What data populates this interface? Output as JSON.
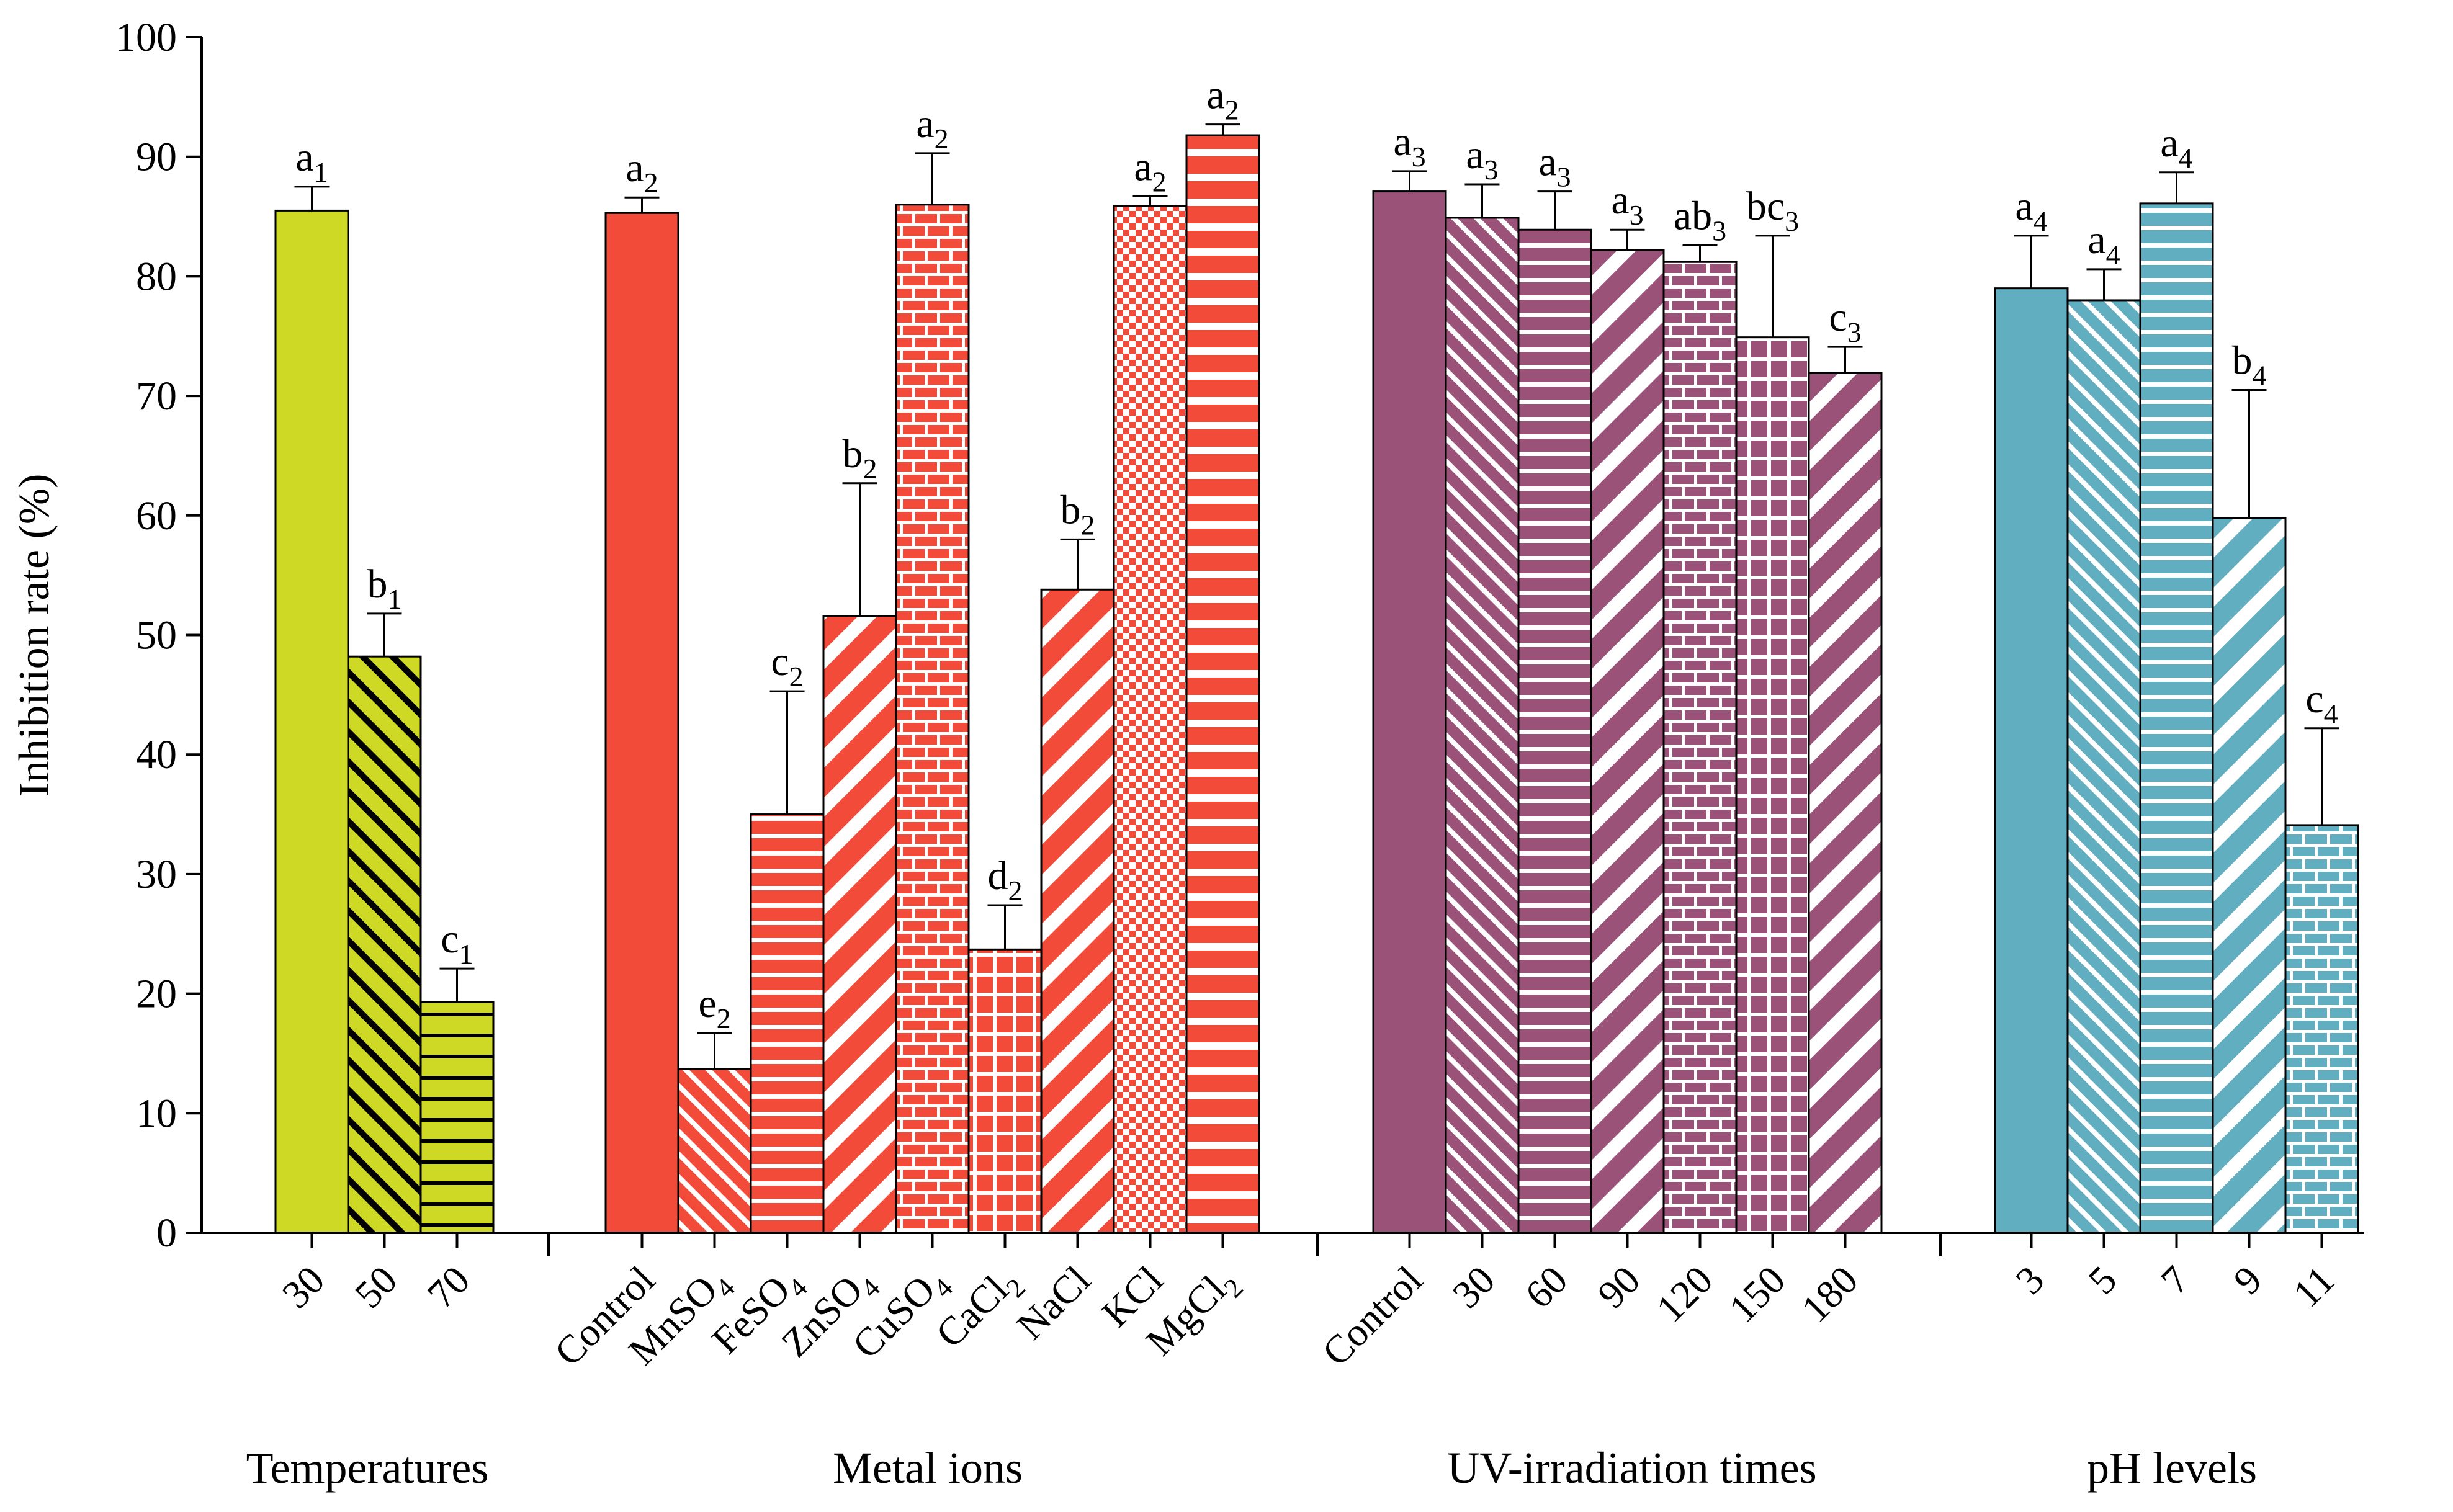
{
  "chart_data": {
    "type": "bar",
    "ylabel": "Inhibition rate (%)",
    "ylim": [
      0,
      100
    ],
    "yticks": [
      0,
      10,
      20,
      30,
      40,
      50,
      60,
      70,
      80,
      90,
      100
    ],
    "grid": false,
    "legend": "none",
    "groups": [
      {
        "name": "Temperatures",
        "color": "#cdd924",
        "bars": [
          {
            "category": "30",
            "value": 85.5,
            "error": 2.0,
            "letter": "a",
            "sub": "1",
            "pattern": "solid"
          },
          {
            "category": "50",
            "value": 48.2,
            "error": 3.6,
            "letter": "b",
            "sub": "1",
            "pattern": "diag-dark"
          },
          {
            "category": "70",
            "value": 19.3,
            "error": 2.8,
            "letter": "c",
            "sub": "1",
            "pattern": "hlines-dark"
          }
        ]
      },
      {
        "name": "Metal ions",
        "color": "#f34b3a",
        "bars": [
          {
            "category": "Control",
            "value": 85.3,
            "error": 1.3,
            "letter": "a",
            "sub": "2",
            "pattern": "solid"
          },
          {
            "category": "MnSO",
            "catsub": "4",
            "value": 13.7,
            "error": 3.0,
            "letter": "e",
            "sub": "2",
            "pattern": "diag-fine"
          },
          {
            "category": "FeSO",
            "catsub": "4",
            "value": 35.0,
            "error": 10.3,
            "letter": "c",
            "sub": "2",
            "pattern": "hlines"
          },
          {
            "category": "ZnSO",
            "catsub": "4",
            "value": 51.6,
            "error": 11.1,
            "letter": "b",
            "sub": "2",
            "pattern": "diag-wide"
          },
          {
            "category": "CuSO",
            "catsub": "4",
            "value": 86.0,
            "error": 4.3,
            "letter": "a",
            "sub": "2",
            "pattern": "brick"
          },
          {
            "category": "CaCl",
            "catsub": "2",
            "value": 23.7,
            "error": 3.7,
            "letter": "d",
            "sub": "2",
            "pattern": "grid"
          },
          {
            "category": "NaCl",
            "value": 53.8,
            "error": 4.2,
            "letter": "b",
            "sub": "2",
            "pattern": "diag-wide"
          },
          {
            "category": "KCl",
            "value": 85.9,
            "error": 0.8,
            "letter": "a",
            "sub": "2",
            "pattern": "checker"
          },
          {
            "category": "MgCl",
            "catsub": "2",
            "value": 91.8,
            "error": 0.9,
            "letter": "a",
            "sub": "2",
            "pattern": "hlines-thick"
          }
        ]
      },
      {
        "name": "UV-irradiation times",
        "color": "#9a5279",
        "bars": [
          {
            "category": "Control",
            "value": 87.1,
            "error": 1.7,
            "letter": "a",
            "sub": "3",
            "pattern": "solid"
          },
          {
            "category": "30",
            "value": 84.9,
            "error": 2.8,
            "letter": "a",
            "sub": "3",
            "pattern": "diag-fine"
          },
          {
            "category": "60",
            "value": 83.9,
            "error": 3.2,
            "letter": "a",
            "sub": "3",
            "pattern": "hlines"
          },
          {
            "category": "90",
            "value": 82.2,
            "error": 1.7,
            "letter": "a",
            "sub": "3",
            "pattern": "diag-wide"
          },
          {
            "category": "120",
            "value": 81.2,
            "error": 1.4,
            "letter": "ab",
            "sub": "3",
            "pattern": "brick"
          },
          {
            "category": "150",
            "value": 74.9,
            "error": 8.5,
            "letter": "bc",
            "sub": "3",
            "pattern": "grid"
          },
          {
            "category": "180",
            "value": 71.9,
            "error": 2.2,
            "letter": "c",
            "sub": "3",
            "pattern": "diag-wide"
          }
        ]
      },
      {
        "name": "pH levels",
        "color": "#62aec1",
        "bars": [
          {
            "category": "3",
            "value": 79.0,
            "error": 4.4,
            "letter": "a",
            "sub": "4",
            "pattern": "solid"
          },
          {
            "category": "5",
            "value": 78.0,
            "error": 2.6,
            "letter": "a",
            "sub": "4",
            "pattern": "diag-fine"
          },
          {
            "category": "7",
            "value": 86.1,
            "error": 2.6,
            "letter": "a",
            "sub": "4",
            "pattern": "hlines"
          },
          {
            "category": "9",
            "value": 59.8,
            "error": 10.7,
            "letter": "b",
            "sub": "4",
            "pattern": "diag-wide"
          },
          {
            "category": "11",
            "value": 34.1,
            "error": 8.1,
            "letter": "c",
            "sub": "4",
            "pattern": "brick"
          }
        ]
      }
    ]
  }
}
